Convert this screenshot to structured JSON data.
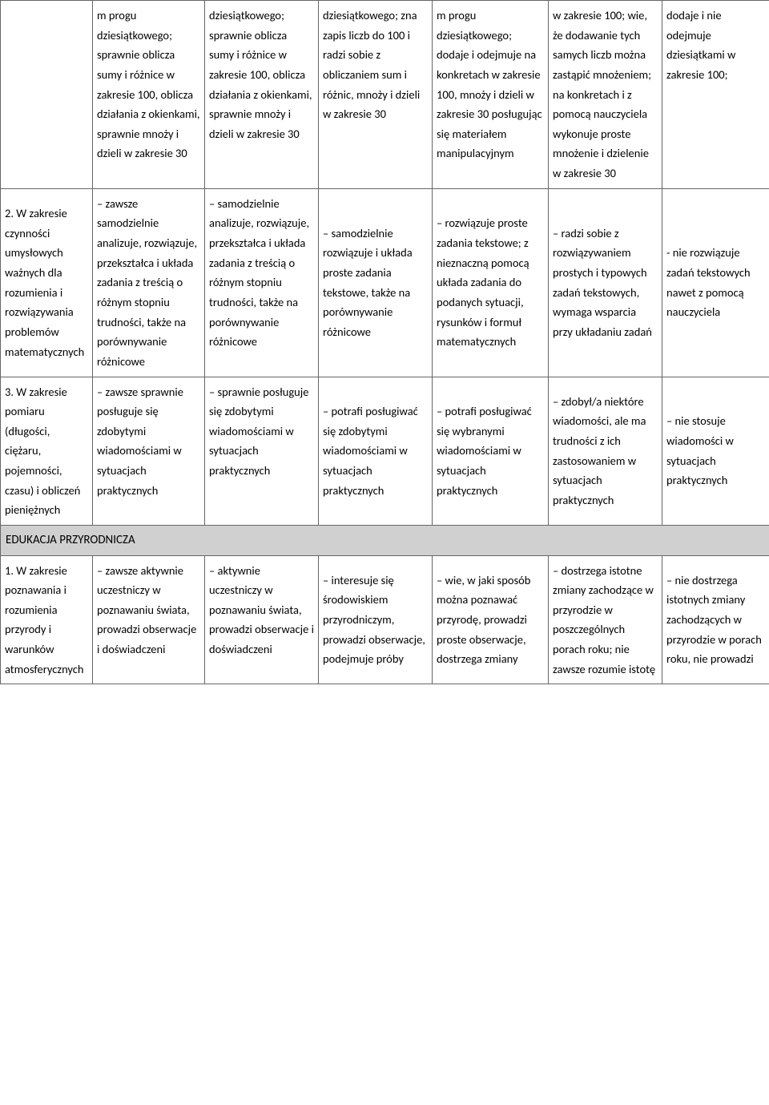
{
  "table": {
    "rows": [
      {
        "type": "data",
        "cells": [
          "",
          "m progu dziesiątkowego; sprawnie oblicza sumy i różnice w zakresie 100, oblicza działania z okienkami, sprawnie mnoży i dzieli w zakresie 30",
          "dziesiątkowego; sprawnie oblicza sumy i różnice w zakresie 100, oblicza działania z okienkami, sprawnie mnoży  i dzieli w zakresie 30",
          "dziesiątkowego; zna zapis liczb do 100 i radzi sobie z obliczaniem sum i różnic, mnoży i dzieli w zakresie 30",
          "m progu dziesiątkowego; dodaje i odejmuje na konkretach w zakresie 100, mnoży i dzieli w zakresie 30 posługując się materiałem manipulacyjnym",
          "w zakresie 100; wie, że dodawanie tych samych liczb można zastąpić mnożeniem; na konkretach i z pomocą nauczyciela wykonuje proste mnożenie i dzielenie w zakresie 30",
          "dodaje i nie odejmuje dziesiątkami w zakresie 100;"
        ]
      },
      {
        "type": "data",
        "cells": [
          "2. W zakresie czynności umysłowych ważnych dla rozumienia i rozwiązywania problemów matematycznych",
          "– zawsze samodzielnie analizuje, rozwiązuje, przekształca i układa zadania z treścią o różnym stopniu trudności, także na porównywanie różnicowe",
          "– samodzielnie analizuje, rozwiązuje, przekształca i układa zadania z treścią o różnym stopniu trudności, także na porównywanie różnicowe",
          "– samodzielnie rozwiązuje i układa proste zadania tekstowe, także na porównywanie różnicowe",
          "– rozwiązuje proste zadania tekstowe; z nieznaczną pomocą układa zadania do podanych sytuacji, rysunków i formuł matematycznych",
          "– radzi sobie z rozwiązywaniem prostych i typowych zadań tekstowych, wymaga wsparcia przy układaniu zadań",
          "- nie rozwiązuje zadań tekstowych nawet z pomocą nauczyciela"
        ]
      },
      {
        "type": "data",
        "cells": [
          "3. W zakresie pomiaru (długości, ciężaru, pojemności, czasu) i obliczeń pieniężnych",
          "– zawsze sprawnie posługuje się zdobytymi wiadomościami w sytuacjach praktycznych",
          "– sprawnie posługuje się zdobytymi wiadomościami w sytuacjach praktycznych",
          "– potrafi posługiwać się zdobytymi wiadomościami w sytuacjach praktycznych",
          "– potrafi posługiwać się wybranymi wiadomościami w sytuacjach praktycznych",
          "– zdobył/a niektóre wiadomości, ale ma trudności z ich zastosowaniem w sytuacjach praktycznych",
          "– nie stosuje wiadomości w sytuacjach praktycznych"
        ]
      },
      {
        "type": "section",
        "label": "EDUKACJA PRZYRODNICZA"
      },
      {
        "type": "data",
        "cells": [
          "1. W zakresie poznawania i rozumienia przyrody i warunków atmosferycznych",
          "– zawsze aktywnie uczestniczy w poznawaniu świata, prowadzi obserwacje i doświadczeni",
          "– aktywnie uczestniczy w poznawaniu świata, prowadzi obserwacje i doświadczeni",
          "– interesuje się środowiskiem przyrodniczym, prowadzi obserwacje, podejmuje próby",
          "– wie, w jaki sposób można poznawać przyrodę, prowadzi proste obserwacje, dostrzega zmiany",
          "– dostrzega istotne zmiany zachodzące w przyrodzie w poszczególnych porach roku; nie zawsze rozumie istotę",
          "– nie dostrzega istotnych zmiany zachodzących w przyrodzie w porach roku, nie prowadzi"
        ]
      }
    ]
  }
}
